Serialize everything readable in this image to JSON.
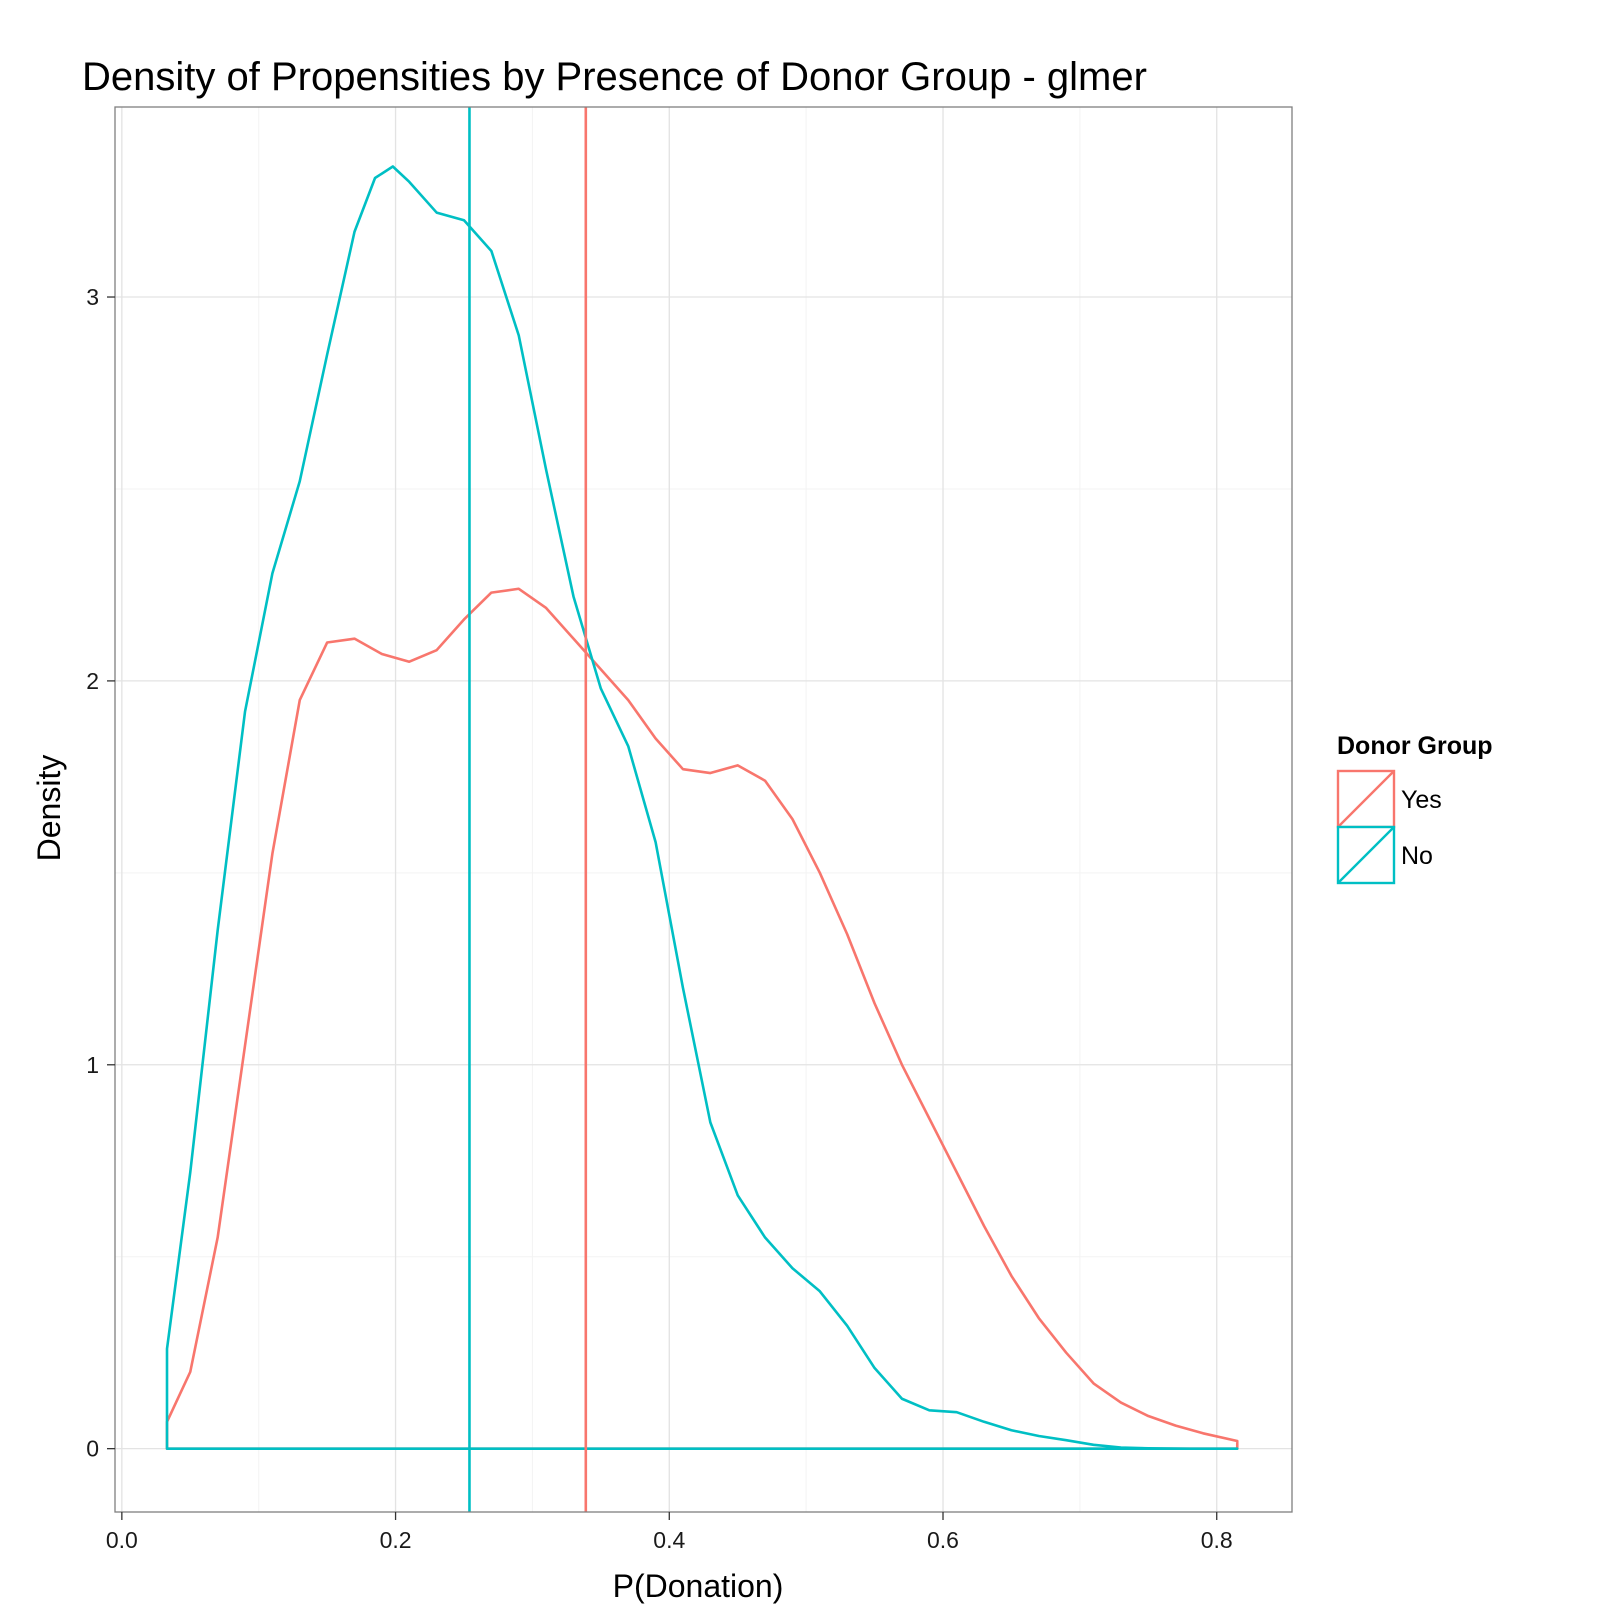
{
  "chart_data": {
    "type": "line",
    "title": "Density of Propensities by Presence of Donor Group - glmer",
    "xlabel": "P(Donation)",
    "ylabel": "Density",
    "xlim": [
      -0.005,
      0.855
    ],
    "ylim": [
      -0.165,
      3.495
    ],
    "x_ticks": [
      0.0,
      0.2,
      0.4,
      0.6,
      0.8
    ],
    "x_tick_labels": [
      "0.0",
      "0.2",
      "0.4",
      "0.6",
      "0.8"
    ],
    "y_ticks": [
      0,
      1,
      2,
      3
    ],
    "y_tick_labels": [
      "0",
      "1",
      "2",
      "3"
    ],
    "grid": true,
    "legend": {
      "title": "Donor Group",
      "position": "right",
      "entries": [
        {
          "label": "Yes",
          "color": "#F8766D"
        },
        {
          "label": "No",
          "color": "#00BFC4"
        }
      ]
    },
    "series": [
      {
        "name": "Yes",
        "color": "#F8766D",
        "mean_line_x": 0.339,
        "points": [
          [
            0.033,
            0.07
          ],
          [
            0.05,
            0.2
          ],
          [
            0.07,
            0.55
          ],
          [
            0.09,
            1.05
          ],
          [
            0.11,
            1.55
          ],
          [
            0.13,
            1.95
          ],
          [
            0.15,
            2.1
          ],
          [
            0.17,
            2.11
          ],
          [
            0.19,
            2.07
          ],
          [
            0.21,
            2.05
          ],
          [
            0.23,
            2.08
          ],
          [
            0.25,
            2.16
          ],
          [
            0.27,
            2.23
          ],
          [
            0.29,
            2.24
          ],
          [
            0.31,
            2.19
          ],
          [
            0.33,
            2.11
          ],
          [
            0.35,
            2.03
          ],
          [
            0.37,
            1.95
          ],
          [
            0.39,
            1.85
          ],
          [
            0.41,
            1.77
          ],
          [
            0.43,
            1.76
          ],
          [
            0.45,
            1.78
          ],
          [
            0.47,
            1.74
          ],
          [
            0.49,
            1.64
          ],
          [
            0.51,
            1.5
          ],
          [
            0.53,
            1.34
          ],
          [
            0.55,
            1.16
          ],
          [
            0.57,
            1.0
          ],
          [
            0.59,
            0.86
          ],
          [
            0.61,
            0.72
          ],
          [
            0.63,
            0.58
          ],
          [
            0.65,
            0.45
          ],
          [
            0.67,
            0.34
          ],
          [
            0.69,
            0.25
          ],
          [
            0.71,
            0.17
          ],
          [
            0.73,
            0.12
          ],
          [
            0.75,
            0.085
          ],
          [
            0.77,
            0.06
          ],
          [
            0.79,
            0.04
          ],
          [
            0.815,
            0.02
          ]
        ]
      },
      {
        "name": "No",
        "color": "#00BFC4",
        "mean_line_x": 0.254,
        "points": [
          [
            0.033,
            0.26
          ],
          [
            0.05,
            0.72
          ],
          [
            0.07,
            1.35
          ],
          [
            0.09,
            1.92
          ],
          [
            0.11,
            2.28
          ],
          [
            0.13,
            2.52
          ],
          [
            0.15,
            2.85
          ],
          [
            0.17,
            3.17
          ],
          [
            0.185,
            3.31
          ],
          [
            0.198,
            3.34
          ],
          [
            0.21,
            3.3
          ],
          [
            0.23,
            3.22
          ],
          [
            0.25,
            3.2
          ],
          [
            0.27,
            3.12
          ],
          [
            0.29,
            2.9
          ],
          [
            0.31,
            2.55
          ],
          [
            0.33,
            2.22
          ],
          [
            0.35,
            1.98
          ],
          [
            0.37,
            1.83
          ],
          [
            0.39,
            1.58
          ],
          [
            0.41,
            1.2
          ],
          [
            0.43,
            0.85
          ],
          [
            0.45,
            0.66
          ],
          [
            0.47,
            0.55
          ],
          [
            0.49,
            0.47
          ],
          [
            0.51,
            0.41
          ],
          [
            0.53,
            0.32
          ],
          [
            0.55,
            0.21
          ],
          [
            0.57,
            0.13
          ],
          [
            0.59,
            0.1
          ],
          [
            0.61,
            0.095
          ],
          [
            0.63,
            0.07
          ],
          [
            0.65,
            0.048
          ],
          [
            0.67,
            0.033
          ],
          [
            0.69,
            0.022
          ],
          [
            0.71,
            0.01
          ],
          [
            0.73,
            0.003
          ],
          [
            0.75,
            0.001
          ],
          [
            0.78,
            0.0
          ],
          [
            0.815,
            0.0
          ]
        ]
      }
    ]
  }
}
